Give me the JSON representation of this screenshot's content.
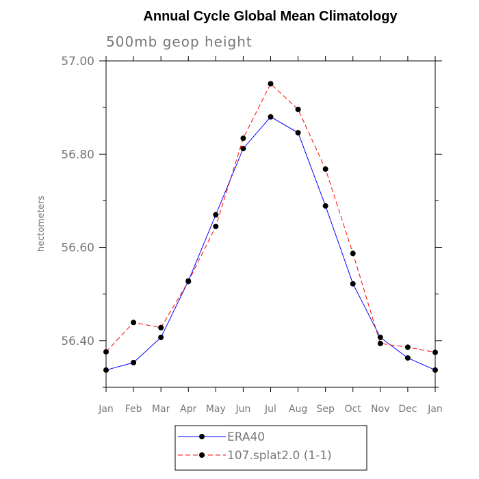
{
  "chart_data": {
    "type": "line",
    "title": "Annual Cycle Global Mean Climatology",
    "subtitle": "500mb geop height",
    "ylabel": "hectometers",
    "xlabel": "",
    "categories": [
      "Jan",
      "Feb",
      "Mar",
      "Apr",
      "May",
      "Jun",
      "Jul",
      "Aug",
      "Sep",
      "Oct",
      "Nov",
      "Dec",
      "Jan"
    ],
    "ylim": [
      56.3,
      57.0
    ],
    "yticks": [
      {
        "value": 57.0,
        "label": "57.00"
      },
      {
        "value": 56.8,
        "label": "56.80"
      },
      {
        "value": 56.6,
        "label": "56.60"
      },
      {
        "value": 56.4,
        "label": "56.40"
      }
    ],
    "yminor": [
      56.3,
      56.5,
      56.7,
      56.9
    ],
    "grid": false,
    "legend_position": "bottom-center",
    "series": [
      {
        "name": "ERA40",
        "color": "#0000ff",
        "dash": "solid",
        "values": [
          56.337,
          56.353,
          56.407,
          56.528,
          56.67,
          56.812,
          56.88,
          56.846,
          56.689,
          56.522,
          56.407,
          56.363,
          56.337
        ]
      },
      {
        "name": "107.splat2.0 (1-1)",
        "color": "#ff0000",
        "dash": "dashed",
        "values": [
          56.376,
          56.439,
          56.428,
          56.527,
          56.645,
          56.834,
          56.951,
          56.896,
          56.768,
          56.587,
          56.394,
          56.386,
          56.375
        ]
      }
    ]
  }
}
